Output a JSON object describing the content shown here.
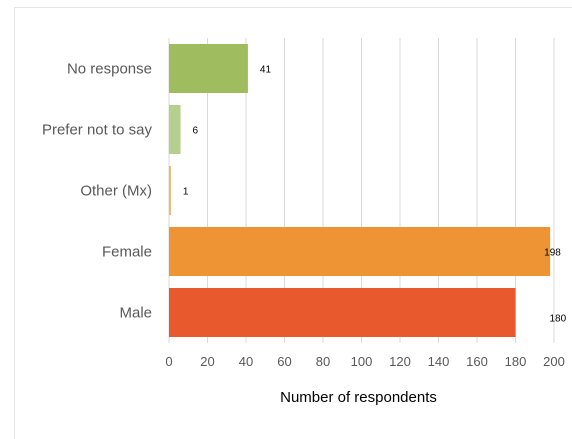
{
  "chart_data": {
    "type": "bar",
    "orientation": "horizontal",
    "categories": [
      "No response",
      "Prefer not to say",
      "Other (Mx)",
      "Female",
      "Male"
    ],
    "values": [
      41,
      6,
      1,
      198,
      180
    ],
    "value_labels": [
      "41",
      "6",
      "1",
      "198",
      "180"
    ],
    "colors": [
      "#9fbd5f",
      "#b5cf8d",
      "#e8b866",
      "#ee9434",
      "#e8592e"
    ],
    "xlabel": "Number of respondents",
    "ylabel": "",
    "xlim": [
      0,
      200
    ],
    "xticks": [
      0,
      20,
      40,
      60,
      80,
      100,
      120,
      140,
      160,
      180,
      200
    ],
    "grid": true,
    "legend": "none"
  }
}
